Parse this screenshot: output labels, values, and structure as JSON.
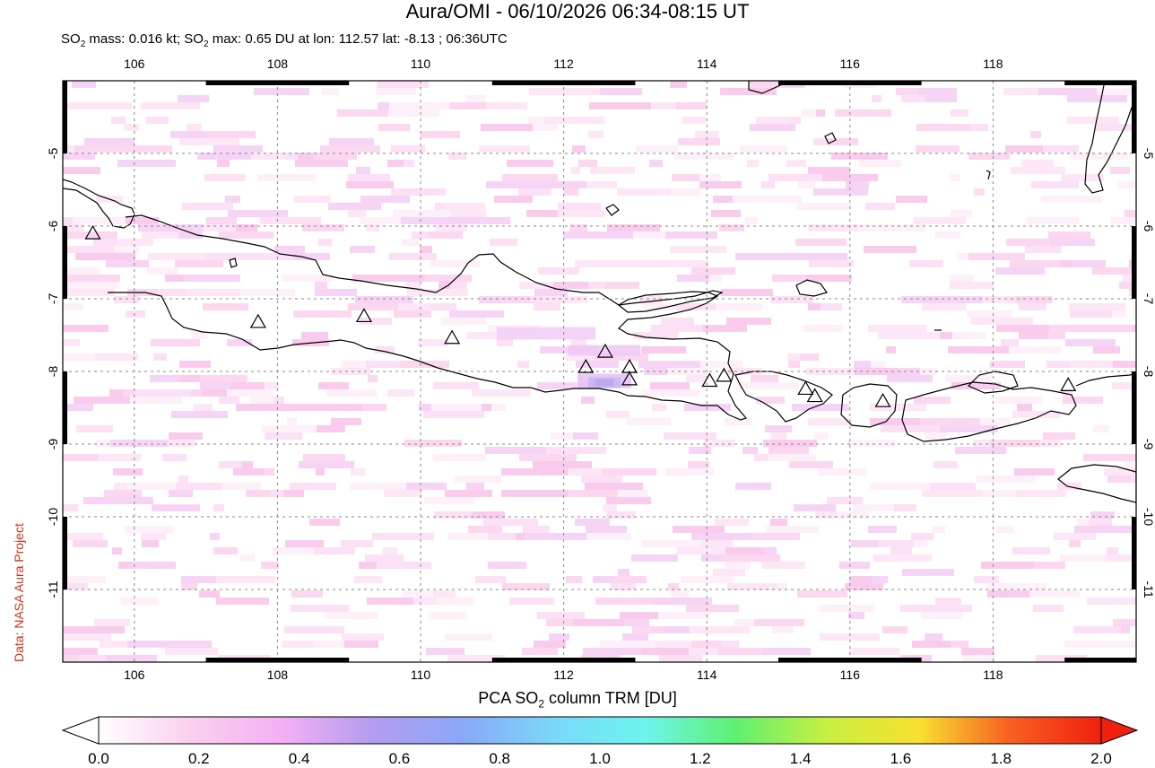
{
  "title": "Aura/OMI - 06/10/2026 06:34-08:15 UT",
  "subtitle": {
    "prefix": "SO",
    "sub": "2",
    "mid": " mass: 0.016 kt; SO",
    "sub2": "2",
    "rest": " max: 0.65 DU at lon: 112.57 lat: -8.13 ; 06:36UTC"
  },
  "credit": "Data: NASA Aura Project",
  "map": {
    "lon_range": [
      105,
      120
    ],
    "lat_range": [
      -12,
      -4
    ],
    "lon_ticks": [
      "106",
      "108",
      "110",
      "112",
      "114",
      "116",
      "118"
    ],
    "lat_ticks": [
      "-5",
      "-6",
      "-7",
      "-8",
      "-9",
      "-10",
      "-11"
    ],
    "land_color": "#ffffff",
    "coast_color": "#000000",
    "volcanoes": [
      {
        "lon": 105.42,
        "lat": -6.1
      },
      {
        "lon": 107.73,
        "lat": -7.32
      },
      {
        "lon": 109.21,
        "lat": -7.24
      },
      {
        "lon": 110.44,
        "lat": -7.54
      },
      {
        "lon": 112.31,
        "lat": -7.94
      },
      {
        "lon": 112.58,
        "lat": -7.73
      },
      {
        "lon": 112.92,
        "lat": -7.94
      },
      {
        "lon": 112.92,
        "lat": -8.11
      },
      {
        "lon": 114.04,
        "lat": -8.13
      },
      {
        "lon": 114.24,
        "lat": -8.06
      },
      {
        "lon": 115.38,
        "lat": -8.24
      },
      {
        "lon": 115.51,
        "lat": -8.34
      },
      {
        "lon": 116.46,
        "lat": -8.41
      },
      {
        "lon": 119.05,
        "lat": -8.19
      }
    ]
  },
  "colorbar": {
    "title_prefix": "PCA SO",
    "title_sub": "2",
    "title_rest": " column TRM [DU]",
    "min": 0.0,
    "max": 2.0,
    "ticks": [
      "0.0",
      "0.2",
      "0.4",
      "0.6",
      "0.8",
      "1.0",
      "1.2",
      "1.4",
      "1.6",
      "1.8",
      "2.0"
    ],
    "stops": [
      "#ffffff",
      "#fbd0ee",
      "#f4b0f4",
      "#b49cf0",
      "#8aa8f8",
      "#7ad8fa",
      "#6cf4ec",
      "#60f070",
      "#c8f040",
      "#f8e030",
      "#f86020",
      "#f02010"
    ]
  }
}
